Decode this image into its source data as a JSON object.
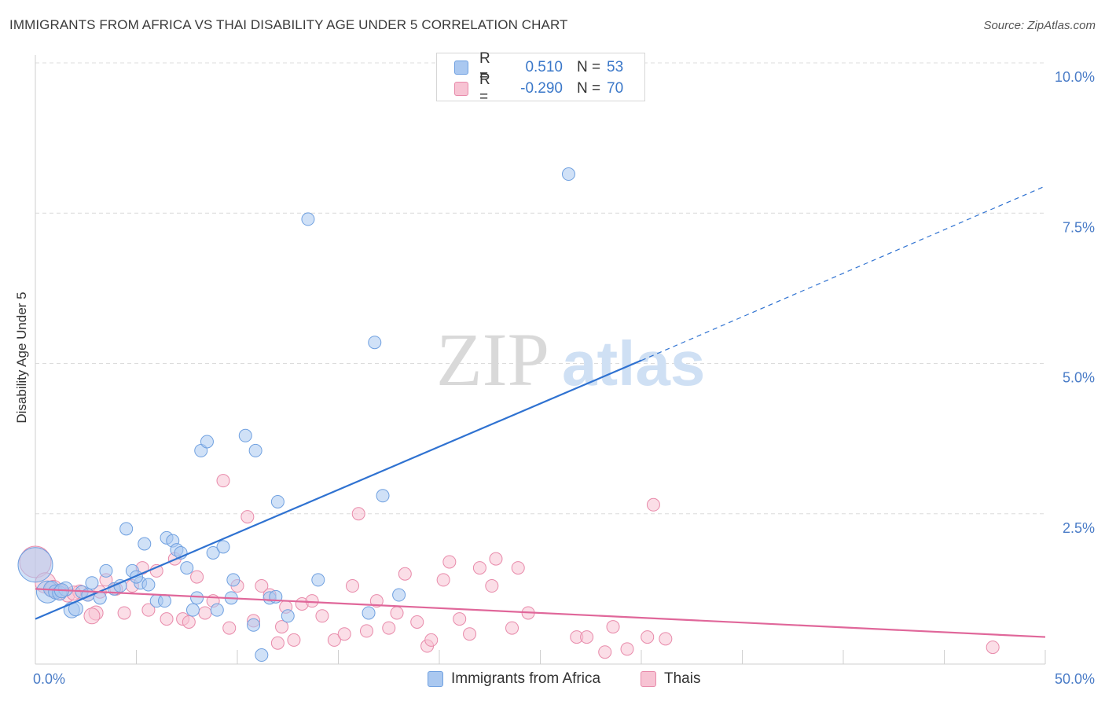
{
  "header": {
    "title": "IMMIGRANTS FROM AFRICA VS THAI DISABILITY AGE UNDER 5 CORRELATION CHART",
    "source": "Source: ZipAtlas.com"
  },
  "watermark": {
    "zip": "ZIP",
    "atlas": "atlas"
  },
  "legend": {
    "rows": [
      {
        "r_label": "R =",
        "r_value": "0.510",
        "n_label": "N =",
        "n_value": "53",
        "color": "#aac8f0",
        "border": "#6fa0e0"
      },
      {
        "r_label": "R =",
        "r_value": "-0.290",
        "n_label": "N =",
        "n_value": "70",
        "color": "#f7c3d3",
        "border": "#e88aaa"
      }
    ]
  },
  "bottom_legend": [
    {
      "label": "Immigrants from Africa",
      "color": "#aac8f0",
      "border": "#6fa0e0"
    },
    {
      "label": "Thais",
      "color": "#f7c3d3",
      "border": "#e88aaa"
    }
  ],
  "colors": {
    "blue_line": "#2f72d1",
    "pink_line": "#e0679a",
    "grid": "#dcdcdc",
    "tick_text": "#4a7cc7"
  },
  "chart_data": {
    "type": "scatter",
    "title": "IMMIGRANTS FROM AFRICA VS THAI DISABILITY AGE UNDER 5 CORRELATION CHART",
    "xlabel": "",
    "ylabel": "Disability Age Under 5",
    "xlim": [
      0,
      50
    ],
    "ylim": [
      0,
      10.5
    ],
    "x_tick_labels": [
      {
        "value": 0,
        "label": "0.0%"
      },
      {
        "value": 50,
        "label": "50.0%"
      }
    ],
    "y_tick_labels": [
      {
        "value": 2.5,
        "label": "2.5%"
      },
      {
        "value": 5.0,
        "label": "5.0%"
      },
      {
        "value": 7.5,
        "label": "7.5%"
      },
      {
        "value": 10.0,
        "label": "10.0%"
      }
    ],
    "grid": true,
    "series": [
      {
        "name": "Immigrants from Africa",
        "color": "#aac8f0",
        "trend": {
          "x": [
            0,
            30
          ],
          "y": [
            0.75,
            5.05
          ],
          "dashed_extension_to_x": 50,
          "dashed_extension_y": 7.95
        },
        "points": [
          [
            0.0,
            1.65,
            22
          ],
          [
            0.6,
            1.2,
            14
          ],
          [
            0.8,
            1.25,
            10
          ],
          [
            1.0,
            1.2,
            9
          ],
          [
            1.2,
            1.18,
            9
          ],
          [
            1.5,
            1.25,
            9
          ],
          [
            1.8,
            0.9,
            10
          ],
          [
            2.0,
            0.92,
            9
          ],
          [
            2.3,
            1.2,
            8
          ],
          [
            2.8,
            1.35,
            8
          ],
          [
            3.2,
            1.1,
            8
          ],
          [
            3.5,
            1.55,
            8
          ],
          [
            3.9,
            1.25,
            8
          ],
          [
            4.5,
            2.25,
            8
          ],
          [
            4.8,
            1.55,
            8
          ],
          [
            5.2,
            1.35,
            8
          ],
          [
            5.4,
            2.0,
            8
          ],
          [
            5.6,
            1.32,
            8
          ],
          [
            6.0,
            1.05,
            8
          ],
          [
            6.4,
            1.05,
            8
          ],
          [
            6.5,
            2.1,
            8
          ],
          [
            6.8,
            2.05,
            8
          ],
          [
            7.0,
            1.9,
            8
          ],
          [
            7.2,
            1.85,
            8
          ],
          [
            7.5,
            1.6,
            8
          ],
          [
            7.8,
            0.9,
            8
          ],
          [
            8.0,
            1.1,
            8
          ],
          [
            8.2,
            3.55,
            8
          ],
          [
            8.5,
            3.7,
            8
          ],
          [
            8.8,
            1.85,
            8
          ],
          [
            9.0,
            0.9,
            8
          ],
          [
            9.3,
            1.95,
            8
          ],
          [
            9.7,
            1.1,
            8
          ],
          [
            9.8,
            1.4,
            8
          ],
          [
            10.4,
            3.8,
            8
          ],
          [
            10.8,
            0.65,
            8
          ],
          [
            10.9,
            3.55,
            8
          ],
          [
            11.2,
            0.15,
            8
          ],
          [
            11.6,
            1.1,
            8
          ],
          [
            11.9,
            1.12,
            8
          ],
          [
            12.0,
            2.7,
            8
          ],
          [
            12.5,
            0.8,
            8
          ],
          [
            13.5,
            7.4,
            8
          ],
          [
            14.0,
            1.4,
            8
          ],
          [
            16.5,
            0.85,
            8
          ],
          [
            16.8,
            5.35,
            8
          ],
          [
            17.2,
            2.8,
            8
          ],
          [
            18.0,
            1.15,
            8
          ],
          [
            26.4,
            8.15,
            8
          ],
          [
            1.3,
            1.22,
            9
          ],
          [
            2.6,
            1.15,
            8
          ],
          [
            4.2,
            1.3,
            8
          ],
          [
            5.0,
            1.45,
            8
          ]
        ]
      },
      {
        "name": "Thais",
        "color": "#f7c3d3",
        "trend": {
          "x": [
            0,
            50
          ],
          "y": [
            1.25,
            0.45
          ]
        },
        "points": [
          [
            0.0,
            1.7,
            20
          ],
          [
            0.5,
            1.35,
            13
          ],
          [
            0.9,
            1.25,
            11
          ],
          [
            1.2,
            1.2,
            10
          ],
          [
            1.6,
            1.15,
            9
          ],
          [
            2.2,
            1.2,
            9
          ],
          [
            2.6,
            1.15,
            8
          ],
          [
            3.0,
            0.85,
            9
          ],
          [
            3.5,
            1.4,
            8
          ],
          [
            4.0,
            1.25,
            8
          ],
          [
            4.4,
            0.85,
            8
          ],
          [
            4.8,
            1.3,
            8
          ],
          [
            5.3,
            1.6,
            8
          ],
          [
            5.6,
            0.9,
            8
          ],
          [
            6.0,
            1.55,
            8
          ],
          [
            6.5,
            0.75,
            8
          ],
          [
            6.9,
            1.75,
            8
          ],
          [
            7.3,
            0.75,
            8
          ],
          [
            7.6,
            0.7,
            8
          ],
          [
            8.0,
            1.45,
            8
          ],
          [
            8.4,
            0.85,
            8
          ],
          [
            8.8,
            1.05,
            8
          ],
          [
            9.3,
            3.05,
            8
          ],
          [
            9.6,
            0.6,
            8
          ],
          [
            10.0,
            1.3,
            8
          ],
          [
            10.5,
            2.45,
            8
          ],
          [
            10.8,
            0.72,
            8
          ],
          [
            11.2,
            1.3,
            8
          ],
          [
            11.6,
            1.15,
            8
          ],
          [
            12.0,
            0.35,
            8
          ],
          [
            12.2,
            0.62,
            8
          ],
          [
            12.4,
            0.95,
            8
          ],
          [
            12.8,
            0.4,
            8
          ],
          [
            13.2,
            1.0,
            8
          ],
          [
            13.7,
            1.05,
            8
          ],
          [
            14.2,
            0.8,
            8
          ],
          [
            14.8,
            0.4,
            8
          ],
          [
            15.3,
            0.5,
            8
          ],
          [
            15.7,
            1.3,
            8
          ],
          [
            16.0,
            2.5,
            8
          ],
          [
            16.4,
            0.55,
            8
          ],
          [
            16.9,
            1.05,
            8
          ],
          [
            17.5,
            0.6,
            8
          ],
          [
            17.9,
            0.85,
            8
          ],
          [
            18.3,
            1.5,
            8
          ],
          [
            18.9,
            0.7,
            8
          ],
          [
            19.4,
            0.3,
            8
          ],
          [
            19.6,
            0.4,
            8
          ],
          [
            20.2,
            1.4,
            8
          ],
          [
            20.5,
            1.7,
            8
          ],
          [
            21.0,
            0.75,
            8
          ],
          [
            21.5,
            0.5,
            8
          ],
          [
            22.0,
            1.6,
            8
          ],
          [
            22.6,
            1.3,
            8
          ],
          [
            22.8,
            1.75,
            8
          ],
          [
            23.6,
            0.6,
            8
          ],
          [
            23.9,
            1.6,
            8
          ],
          [
            24.4,
            0.85,
            8
          ],
          [
            26.8,
            0.45,
            8
          ],
          [
            27.3,
            0.45,
            8
          ],
          [
            28.2,
            0.2,
            8
          ],
          [
            28.6,
            0.62,
            8
          ],
          [
            29.3,
            0.25,
            8
          ],
          [
            30.3,
            0.45,
            8
          ],
          [
            30.6,
            2.65,
            8
          ],
          [
            31.2,
            0.42,
            8
          ],
          [
            47.4,
            0.28,
            8
          ],
          [
            1.9,
            1.18,
            9
          ],
          [
            3.2,
            1.2,
            8
          ],
          [
            2.8,
            0.8,
            10
          ]
        ]
      }
    ]
  }
}
